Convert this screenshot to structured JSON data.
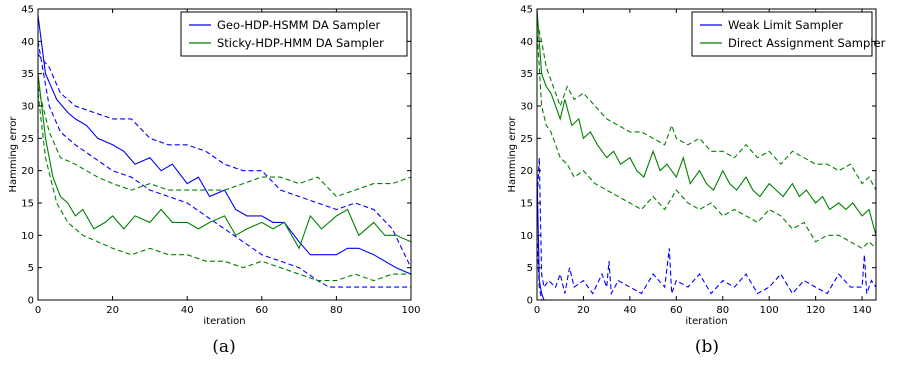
{
  "chart_data": [
    {
      "type": "line",
      "caption": "(a)",
      "xlabel": "iteration",
      "ylabel": "Hamming error",
      "xlim": [
        0,
        100
      ],
      "ylim": [
        0,
        45
      ],
      "xticks": [
        0,
        20,
        40,
        60,
        80,
        100
      ],
      "yticks": [
        0,
        5,
        10,
        15,
        20,
        25,
        30,
        35,
        40,
        45
      ],
      "grid": false,
      "legend_position": "top-right",
      "series": [
        {
          "name": "Geo-HDP-HSMM DA Sampler",
          "color": "#0000ff",
          "style": "solid",
          "x": [
            0,
            2,
            5,
            8,
            10,
            13,
            16,
            20,
            23,
            26,
            30,
            33,
            36,
            40,
            43,
            46,
            50,
            53,
            56,
            60,
            63,
            66,
            70,
            73,
            76,
            80,
            83,
            86,
            90,
            93,
            96,
            100
          ],
          "y": [
            44,
            35,
            31,
            29,
            28,
            27,
            25,
            24,
            23,
            21,
            22,
            20,
            21,
            18,
            19,
            16,
            17,
            14,
            13,
            13,
            12,
            12,
            9,
            7,
            7,
            7,
            8,
            8,
            7,
            6,
            5,
            4
          ]
        },
        {
          "name": "",
          "color": "#0000ff",
          "style": "dashed",
          "x": [
            0,
            3,
            6,
            10,
            15,
            20,
            25,
            30,
            35,
            40,
            45,
            50,
            55,
            60,
            65,
            70,
            75,
            80,
            85,
            90,
            95,
            100
          ],
          "y": [
            38,
            36,
            32,
            30,
            29,
            28,
            28,
            25,
            24,
            24,
            23,
            21,
            20,
            20,
            17,
            16,
            15,
            14,
            15,
            14,
            11,
            5
          ]
        },
        {
          "name": "",
          "color": "#0000ff",
          "style": "dashed",
          "x": [
            0,
            3,
            6,
            10,
            15,
            20,
            25,
            30,
            35,
            40,
            45,
            50,
            55,
            60,
            65,
            70,
            75,
            78,
            80,
            85,
            90,
            95,
            100
          ],
          "y": [
            40,
            30,
            26,
            24,
            22,
            20,
            19,
            17,
            16,
            15,
            13,
            11,
            9,
            7,
            6,
            5,
            3,
            2,
            2,
            2,
            2,
            2,
            2
          ]
        },
        {
          "name": "Sticky-HDP-HMM DA Sampler",
          "color": "#008000",
          "style": "solid",
          "x": [
            0,
            2,
            4,
            6,
            8,
            10,
            12,
            15,
            18,
            20,
            23,
            26,
            30,
            33,
            36,
            40,
            43,
            46,
            50,
            53,
            56,
            60,
            63,
            66,
            70,
            73,
            76,
            80,
            83,
            86,
            90,
            93,
            96,
            100
          ],
          "y": [
            35,
            25,
            19,
            16,
            15,
            13,
            14,
            11,
            12,
            13,
            11,
            13,
            12,
            14,
            12,
            12,
            11,
            12,
            13,
            10,
            11,
            12,
            11,
            12,
            8,
            13,
            11,
            13,
            14,
            10,
            12,
            10,
            10,
            9
          ]
        },
        {
          "name": "",
          "color": "#008000",
          "style": "dashed",
          "x": [
            0,
            3,
            6,
            10,
            13,
            16,
            20,
            25,
            30,
            35,
            40,
            45,
            50,
            55,
            60,
            65,
            70,
            75,
            80,
            85,
            90,
            95,
            100
          ],
          "y": [
            33,
            26,
            22,
            21,
            20,
            19,
            18,
            17,
            18,
            17,
            17,
            17,
            17,
            18,
            19,
            19,
            18,
            19,
            16,
            17,
            18,
            18,
            19
          ]
        },
        {
          "name": "",
          "color": "#008000",
          "style": "dashed",
          "x": [
            0,
            2,
            5,
            8,
            12,
            16,
            20,
            25,
            30,
            35,
            40,
            45,
            50,
            55,
            60,
            65,
            70,
            75,
            80,
            85,
            90,
            95,
            100
          ],
          "y": [
            32,
            22,
            15,
            12,
            10,
            9,
            8,
            7,
            8,
            7,
            7,
            6,
            6,
            5,
            6,
            5,
            4,
            3,
            3,
            4,
            3,
            4,
            4
          ]
        }
      ]
    },
    {
      "type": "line",
      "caption": "(b)",
      "xlabel": "iteration",
      "ylabel": "Hamming error",
      "xlim": [
        0,
        146
      ],
      "ylim": [
        0,
        45
      ],
      "xticks": [
        0,
        20,
        40,
        60,
        80,
        100,
        120,
        140
      ],
      "yticks": [
        0,
        5,
        10,
        15,
        20,
        25,
        30,
        35,
        40,
        45
      ],
      "grid": false,
      "legend_position": "top-right",
      "series": [
        {
          "name": "Weak Limit Sampler",
          "color": "#0000ff",
          "style": "solid",
          "x": [
            0,
            1,
            2,
            3,
            4,
            146
          ],
          "y": [
            20,
            3,
            1,
            0,
            0,
            0
          ]
        },
        {
          "name": "",
          "color": "#0000ff",
          "style": "dashed",
          "x": [
            0,
            1,
            2,
            3,
            5,
            8,
            10,
            12,
            14,
            16,
            20,
            24,
            28,
            30,
            31,
            32,
            35,
            40,
            45,
            50,
            55,
            57,
            58,
            60,
            65,
            70,
            75,
            80,
            85,
            90,
            95,
            100,
            105,
            110,
            115,
            120,
            125,
            130,
            135,
            140,
            141,
            142,
            144,
            146
          ],
          "y": [
            15,
            22,
            4,
            2,
            3,
            2,
            4,
            1,
            5,
            2,
            3,
            1,
            4,
            2,
            6,
            1,
            3,
            2,
            1,
            4,
            2,
            8,
            1,
            3,
            2,
            4,
            1,
            3,
            2,
            4,
            1,
            2,
            4,
            1,
            3,
            2,
            1,
            4,
            2,
            2,
            7,
            1,
            3,
            2
          ]
        },
        {
          "name": "",
          "color": "#0000ff",
          "style": "dashed",
          "x": [
            0,
            1,
            2,
            4,
            146
          ],
          "y": [
            10,
            2,
            0,
            0,
            0
          ]
        },
        {
          "name": "Direct Assignment Sampler",
          "color": "#008000",
          "style": "solid",
          "x": [
            0,
            2,
            4,
            6,
            8,
            10,
            12,
            15,
            18,
            20,
            23,
            26,
            30,
            33,
            36,
            40,
            43,
            46,
            50,
            53,
            56,
            60,
            63,
            66,
            70,
            73,
            76,
            80,
            83,
            86,
            90,
            93,
            96,
            100,
            103,
            106,
            110,
            113,
            116,
            120,
            123,
            126,
            130,
            133,
            136,
            140,
            143,
            146
          ],
          "y": [
            45,
            35,
            33,
            32,
            30,
            28,
            31,
            27,
            28,
            25,
            26,
            24,
            22,
            23,
            21,
            22,
            20,
            19,
            23,
            20,
            21,
            19,
            22,
            18,
            20,
            18,
            17,
            20,
            18,
            17,
            19,
            17,
            16,
            18,
            17,
            16,
            18,
            16,
            17,
            15,
            16,
            14,
            15,
            14,
            15,
            13,
            14,
            10
          ]
        },
        {
          "name": "",
          "color": "#008000",
          "style": "dashed",
          "x": [
            0,
            2,
            4,
            6,
            8,
            10,
            13,
            16,
            20,
            25,
            30,
            35,
            40,
            45,
            50,
            55,
            58,
            60,
            65,
            70,
            75,
            80,
            85,
            90,
            95,
            100,
            105,
            110,
            115,
            120,
            125,
            130,
            135,
            140,
            143,
            146
          ],
          "y": [
            43,
            40,
            36,
            34,
            32,
            30,
            33,
            31,
            32,
            30,
            28,
            27,
            26,
            26,
            25,
            24,
            27,
            25,
            24,
            25,
            23,
            23,
            22,
            24,
            22,
            23,
            21,
            23,
            22,
            21,
            21,
            20,
            21,
            18,
            19,
            17
          ]
        },
        {
          "name": "",
          "color": "#008000",
          "style": "dashed",
          "x": [
            0,
            2,
            4,
            6,
            8,
            10,
            13,
            16,
            20,
            25,
            30,
            35,
            40,
            45,
            50,
            55,
            60,
            65,
            70,
            75,
            80,
            85,
            90,
            95,
            100,
            105,
            110,
            115,
            120,
            125,
            130,
            135,
            140,
            143,
            146
          ],
          "y": [
            42,
            30,
            27,
            26,
            24,
            22,
            21,
            19,
            20,
            18,
            17,
            16,
            15,
            14,
            16,
            14,
            17,
            15,
            14,
            15,
            13,
            14,
            13,
            12,
            14,
            13,
            11,
            12,
            9,
            10,
            10,
            9,
            8,
            9,
            8
          ]
        }
      ]
    }
  ]
}
